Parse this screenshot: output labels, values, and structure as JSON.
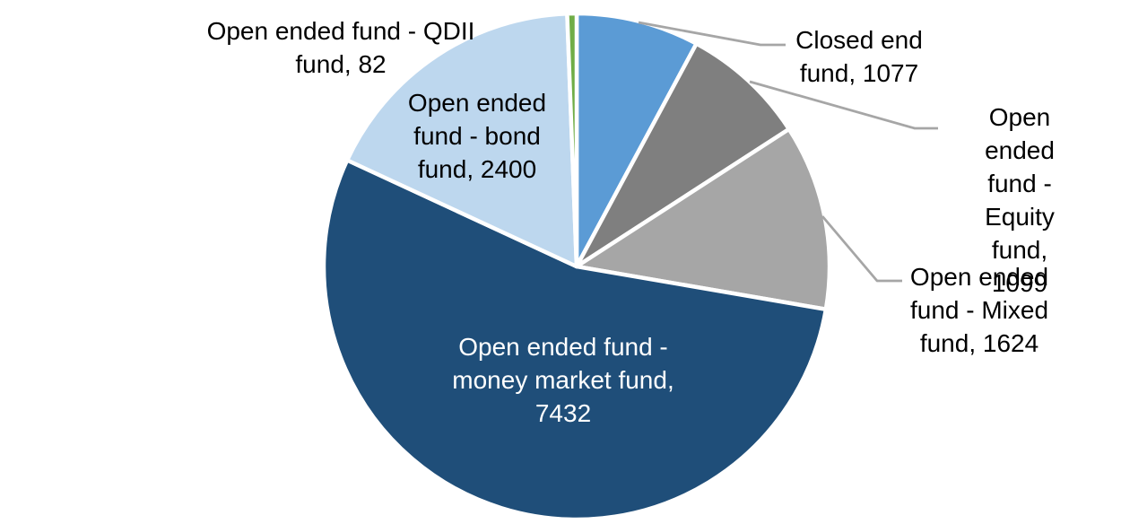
{
  "chart_data": {
    "type": "pie",
    "title": "",
    "legend": "none",
    "direction": "clockwise",
    "start_angle_deg": 0,
    "total": 13714,
    "slices": [
      {
        "category": "Closed end fund",
        "value": 1077,
        "color": "#5B9BD5",
        "label_placement": "outside-right"
      },
      {
        "category": "Open ended fund - Equity fund",
        "value": 1099,
        "color": "#7F7F7F",
        "label_placement": "outside-right"
      },
      {
        "category": "Open ended fund - Mixed fund",
        "value": 1624,
        "color": "#A6A6A6",
        "label_placement": "outside-right"
      },
      {
        "category": "Open ended fund - money market fund",
        "value": 7432,
        "color": "#1F4E79",
        "label_placement": "inside"
      },
      {
        "category": "Open ended fund - bond fund",
        "value": 2400,
        "color": "#BDD7EE",
        "label_placement": "inside"
      },
      {
        "category": "Open ended fund - QDII fund",
        "value": 82,
        "color": "#70AD47",
        "label_placement": "outside-left"
      }
    ],
    "slice_border_color": "#FFFFFF",
    "leader_line_color": "#A6A6A6",
    "labels": {
      "qdii": "Open ended fund - QDII\nfund, 82",
      "closed": "Closed end\nfund, 1077",
      "equity": "Open ended\nfund - Equity\nfund, 1099",
      "mixed": "Open ended\nfund - Mixed\nfund, 1624",
      "bond": "Open ended\nfund - bond\nfund, 2400",
      "money": "Open ended fund -\nmoney market fund,\n7432"
    }
  }
}
